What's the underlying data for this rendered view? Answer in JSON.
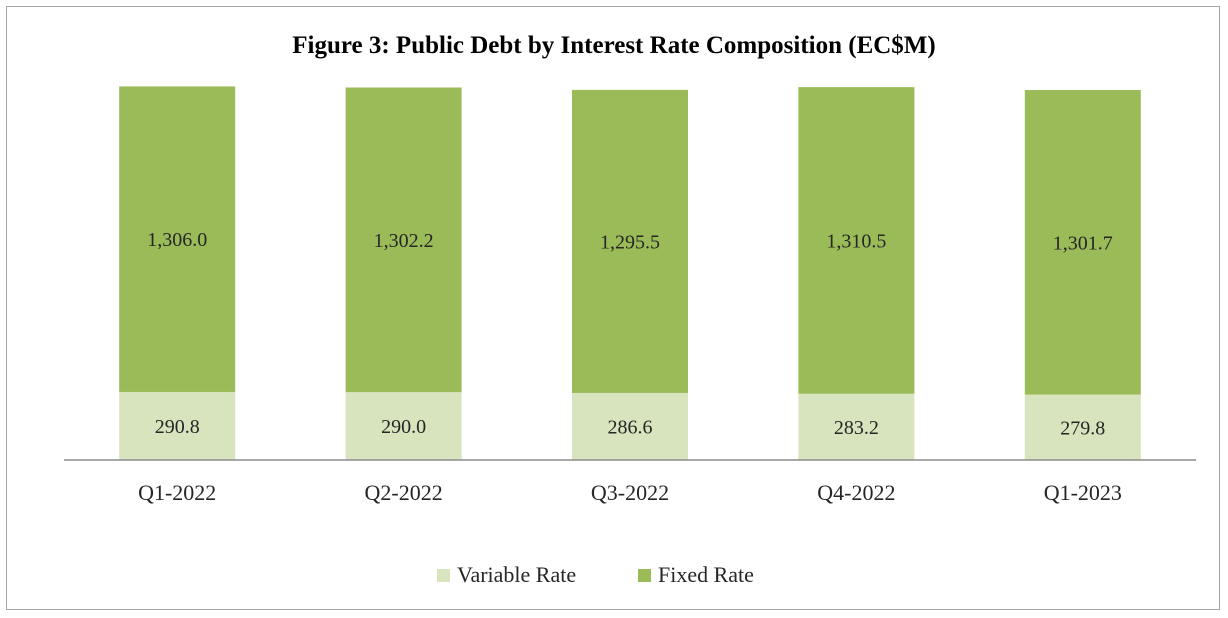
{
  "chart_data": {
    "type": "bar",
    "stacked": true,
    "title": "Figure 3: Public Debt by Interest Rate Composition (EC$M)",
    "categories": [
      "Q1-2022",
      "Q2-2022",
      "Q3-2022",
      "Q4-2022",
      "Q1-2023"
    ],
    "series": [
      {
        "name": "Variable Rate",
        "color": "#d7e4bd",
        "values": [
          290.8,
          290.0,
          286.6,
          283.2,
          279.8
        ],
        "labels": [
          "290.8",
          "290.0",
          "286.6",
          "283.2",
          "279.8"
        ]
      },
      {
        "name": "Fixed Rate",
        "color": "#9bbb59",
        "values": [
          1306.0,
          1302.2,
          1295.5,
          1310.5,
          1301.7
        ],
        "labels": [
          "1,306.0",
          "1,302.2",
          "1,295.5",
          "1,310.5",
          "1,301.7"
        ]
      }
    ],
    "ylim": [
      0,
      1620
    ],
    "grid": false,
    "legend_position": "bottom"
  }
}
